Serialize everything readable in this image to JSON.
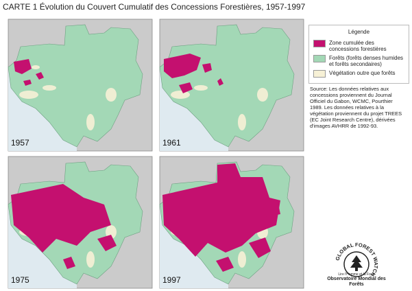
{
  "title": "CARTE 1  Évolution du Couvert Cumulatif des Concessions Forestières, 1957-1997",
  "panels": [
    {
      "year": "1957"
    },
    {
      "year": "1961"
    },
    {
      "year": "1975"
    },
    {
      "year": "1997"
    }
  ],
  "legend": {
    "title": "Légende",
    "items": [
      {
        "label": "Zone cumulée des concessions forestières"
      },
      {
        "label": "Forêts (forêts denses humides et forêts secondaires)"
      },
      {
        "label": "Végétation outre que forêts"
      }
    ]
  },
  "source": "Source:  Les données relatives aux concessions proviennent du Journal Officiel du Gabon, WCMC, Pourthier 1989.  Les données relatives à la végétation proviennent du projet TREES (EC Joint Research Centre), dérivées d'images AVHRR de 1992-93.",
  "logo": {
    "ring": "GLOBAL FOREST WATCH",
    "tagline": "Lire l'Homme et la Forêt",
    "name": "Observatoire Mondial des Forêts"
  }
}
